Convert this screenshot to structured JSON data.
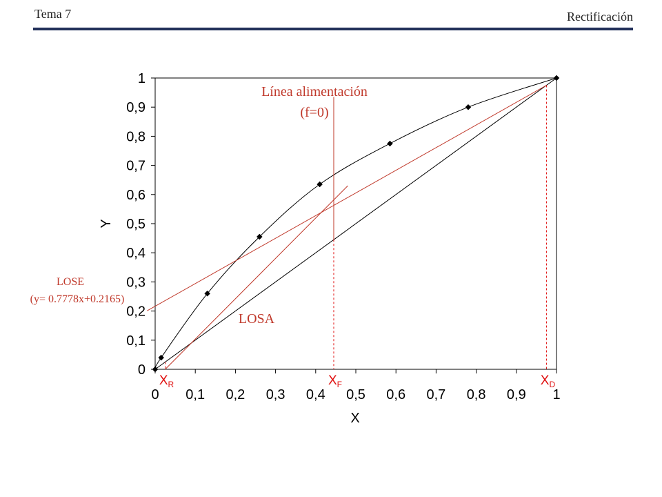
{
  "header": {
    "left": "Tema 7",
    "right": "Rectificación"
  },
  "chart_data": {
    "type": "line",
    "xlabel": "X",
    "ylabel": "Y",
    "xlim": [
      0,
      1
    ],
    "ylim": [
      0,
      1
    ],
    "x_ticks": [
      "0",
      "0,1",
      "0,2",
      "0,3",
      "0,4",
      "0,5",
      "0,6",
      "0,7",
      "0,8",
      "0,9",
      "1"
    ],
    "y_ticks": [
      "0",
      "0,1",
      "0,2",
      "0,3",
      "0,4",
      "0,5",
      "0,6",
      "0,7",
      "0,8",
      "0,9",
      "1"
    ],
    "equilibrium_points": {
      "x": [
        0,
        0.015,
        0.13,
        0.26,
        0.41,
        0.585,
        0.78,
        1.0
      ],
      "y": [
        0,
        0.04,
        0.26,
        0.455,
        0.635,
        0.775,
        0.9,
        1.0
      ]
    },
    "diagonal": {
      "x": [
        0,
        1
      ],
      "y": [
        0,
        1
      ]
    },
    "lose": {
      "label": "LOSE",
      "equation": "(y= 0.7778x+0.2165)",
      "slope": 0.7778,
      "intercept": 0.2165,
      "x": [
        -0.02,
        0.975
      ]
    },
    "losa": {
      "label": "LOSA",
      "x": [
        0.025,
        0.48
      ],
      "y": [
        0.0,
        0.63
      ]
    },
    "feed_line": {
      "label": "Línea  alimentación",
      "sublabel": "(f=0)",
      "x": 0.445,
      "y": [
        0.445,
        0.935
      ]
    },
    "markers": [
      {
        "symbol": "X",
        "sub": "R",
        "x": 0.025
      },
      {
        "symbol": "X",
        "sub": "F",
        "x": 0.445
      },
      {
        "symbol": "X",
        "sub": "D",
        "x": 0.975
      }
    ],
    "colors": {
      "curve": "#000000",
      "operating": "#c0392b",
      "marker": "#e01010"
    }
  }
}
